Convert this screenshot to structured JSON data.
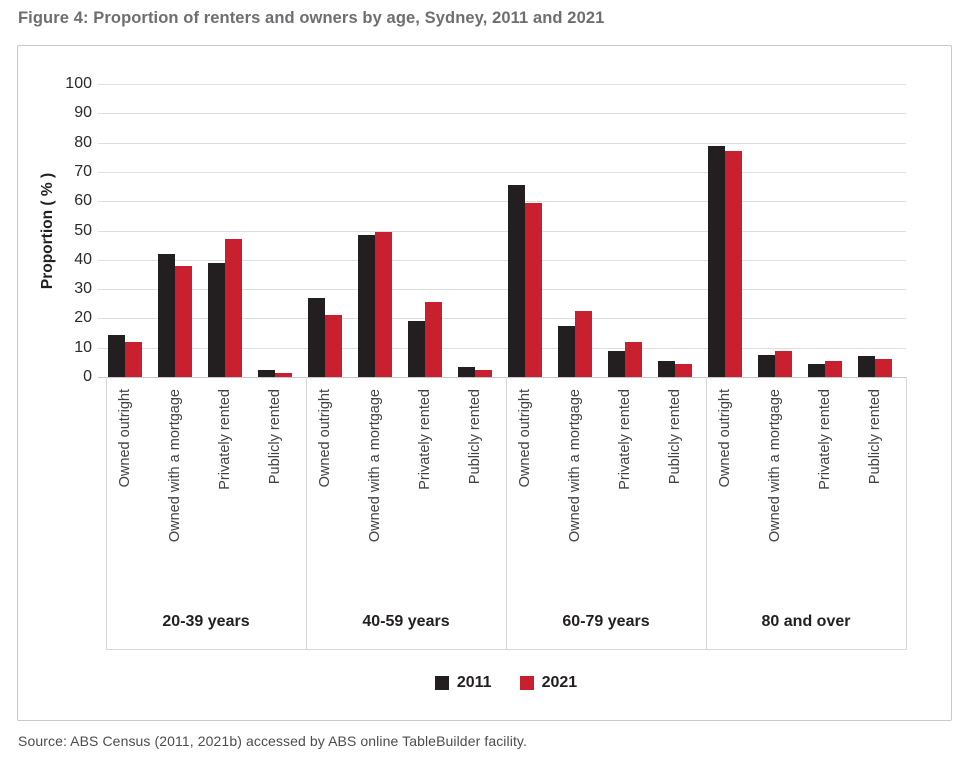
{
  "figure": {
    "title": "Figure 4: Proportion of renters and owners by age, Sydney, 2011 and 2021",
    "source": "Source: ABS Census (2011, 2021b) accessed by ABS online TableBuilder facility."
  },
  "chart_data": {
    "type": "bar",
    "title": "Proportion of renters and owners by age, Sydney, 2011 and 2021",
    "ylabel": "Proportion ( % )",
    "ylim": [
      0,
      100
    ],
    "ytick_step": 10,
    "grid": true,
    "legend_position": "bottom-center",
    "groups": [
      "20-39 years",
      "40-59 years",
      "60-79 years",
      "80 and over"
    ],
    "categories": [
      "Owned outright",
      "Owned with a mortgage",
      "Privately rented",
      "Publicly rented"
    ],
    "series": [
      {
        "name": "2011",
        "color": "#231f20",
        "values": [
          [
            14.5,
            42,
            39,
            2.5
          ],
          [
            27,
            48.5,
            19,
            3.5
          ],
          [
            65.5,
            17.5,
            9,
            5.5
          ],
          [
            79,
            7.5,
            4.5,
            7
          ]
        ]
      },
      {
        "name": "2021",
        "color": "#c8202f",
        "values": [
          [
            12,
            38,
            47,
            1.5
          ],
          [
            21,
            49.5,
            25.5,
            2.5
          ],
          [
            59.5,
            22.5,
            12,
            4.5
          ],
          [
            77,
            9,
            5.5,
            6
          ]
        ]
      }
    ]
  },
  "colors": {
    "bar_2011": "#231f20",
    "bar_2021": "#c8202f",
    "gridline": "#dedede",
    "axis_line": "#c7c7c7",
    "divider": "#d7d7d7",
    "panel_border": "#c9c9c9",
    "title_text": "#6d6e71",
    "body_text": "#231f20"
  }
}
